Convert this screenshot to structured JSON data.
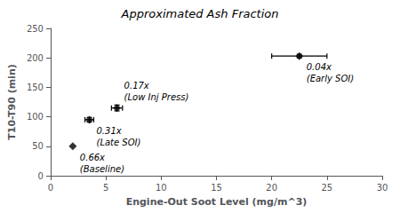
{
  "chart_data": {
    "type": "scatter",
    "title": "Approximated Ash Fraction",
    "xlabel": "Engine-Out Soot Level (mg/m^3)",
    "ylabel": "T10-T90 (min)",
    "x": [
      2.0,
      3.5,
      6.0,
      22.5
    ],
    "values": [
      50,
      95,
      115,
      203
    ],
    "xerr": [
      0,
      0.4,
      0.5,
      2.5
    ],
    "yerr": [
      0,
      4,
      5,
      3
    ],
    "annotations": [
      "0.66x\n(Baseline)",
      "0.31x\n(Late SOI)",
      "0.17x\n(Low Inj Press)",
      "0.04x\n(Early SOI)"
    ],
    "xlim": [
      0,
      30
    ],
    "xticks": [
      0,
      5,
      10,
      15,
      20,
      25,
      30
    ],
    "ylim": [
      0,
      250
    ],
    "yticks": [
      0,
      50,
      100,
      150,
      200,
      250
    ],
    "grid": false,
    "marker": "diamond",
    "color": "black"
  }
}
